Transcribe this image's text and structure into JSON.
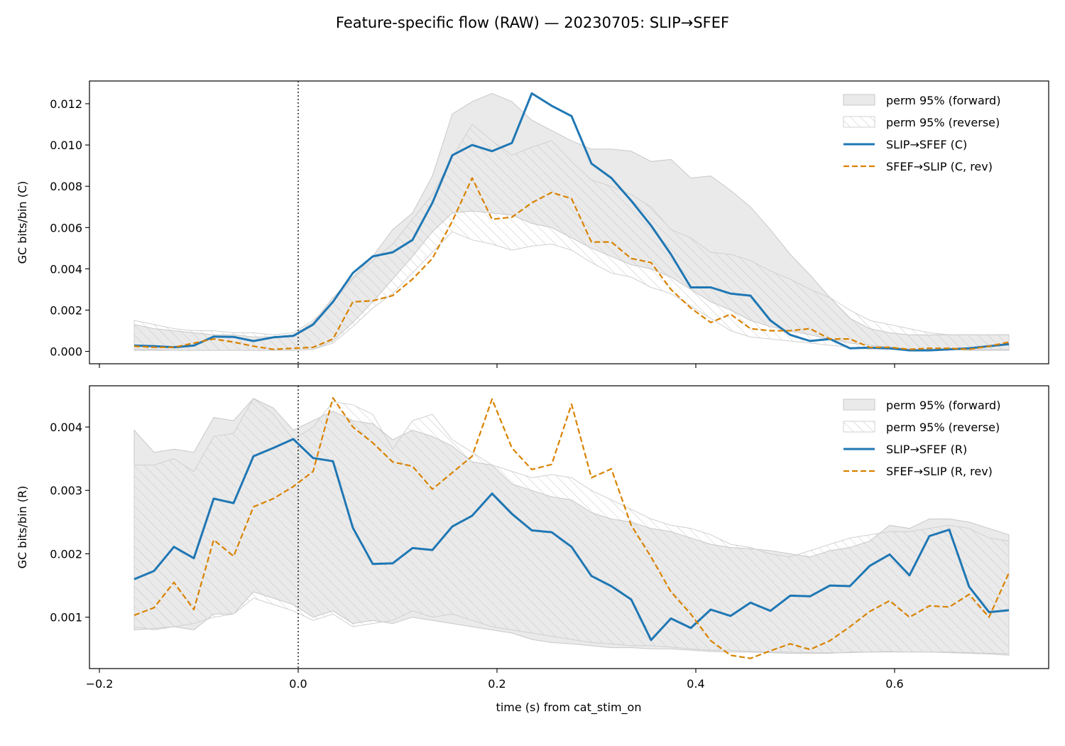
{
  "figure_title": "Feature-specific flow (RAW) — 20230705: SLIP→SFEF",
  "xlabel": "time (s) from cat_stim_on",
  "colors": {
    "forward": "#1f77b4",
    "reverse": "#d98200",
    "band": "#d9d9d9",
    "hatch": "#bdbdbd",
    "vline": "#000000"
  },
  "chart_data": [
    {
      "type": "line",
      "ylabel": "GC bits/bin (C)",
      "xlim": [
        -0.21,
        0.755
      ],
      "ylim": [
        -0.0006,
        0.0131
      ],
      "xticks": [
        -0.2,
        0.0,
        0.2,
        0.4,
        0.6
      ],
      "xticklabels": [
        "−0.2",
        "0.0",
        "0.2",
        "0.4",
        "0.6"
      ],
      "show_xticklabels": false,
      "yticks": [
        0.0,
        0.002,
        0.004,
        0.006,
        0.008,
        0.01,
        0.012
      ],
      "yticklabels": [
        "0.000",
        "0.002",
        "0.004",
        "0.006",
        "0.008",
        "0.010",
        "0.012"
      ],
      "vline_x": 0.0,
      "legend_position": "top-right",
      "x": [
        -0.165,
        -0.145,
        -0.125,
        -0.105,
        -0.085,
        -0.065,
        -0.045,
        -0.025,
        -0.005,
        0.015,
        0.035,
        0.055,
        0.075,
        0.095,
        0.115,
        0.135,
        0.155,
        0.175,
        0.195,
        0.215,
        0.235,
        0.255,
        0.275,
        0.295,
        0.315,
        0.335,
        0.355,
        0.375,
        0.395,
        0.415,
        0.435,
        0.455,
        0.475,
        0.495,
        0.515,
        0.535,
        0.555,
        0.575,
        0.595,
        0.615,
        0.635,
        0.655,
        0.675,
        0.695,
        0.715
      ],
      "band_forward": {
        "name": "perm 95% (forward)",
        "lower": [
          5e-05,
          5e-05,
          5e-05,
          5e-05,
          5e-05,
          5e-05,
          5e-05,
          5e-05,
          5e-05,
          0.0001,
          0.0005,
          0.0014,
          0.0024,
          0.0035,
          0.0046,
          0.0058,
          0.0067,
          0.0068,
          0.0067,
          0.0066,
          0.0062,
          0.006,
          0.0055,
          0.005,
          0.0046,
          0.0042,
          0.004,
          0.0036,
          0.003,
          0.0024,
          0.002,
          0.0015,
          0.0012,
          0.001,
          0.0008,
          0.0006,
          0.0004,
          0.0003,
          0.0002,
          0.0001,
          0.0001,
          0.0001,
          5e-05,
          5e-05,
          5e-05
        ],
        "upper": [
          0.0013,
          0.0011,
          0.001,
          0.0009,
          0.0008,
          0.0008,
          0.0007,
          0.0007,
          0.0008,
          0.0014,
          0.0026,
          0.0036,
          0.0046,
          0.0059,
          0.0067,
          0.0085,
          0.0115,
          0.0121,
          0.0125,
          0.0121,
          0.0112,
          0.0107,
          0.0102,
          0.0098,
          0.0098,
          0.0097,
          0.0092,
          0.0093,
          0.0084,
          0.0085,
          0.0078,
          0.007,
          0.0059,
          0.0047,
          0.0037,
          0.0026,
          0.0016,
          0.0011,
          0.0009,
          0.0008,
          0.0008,
          0.0008,
          0.0008,
          0.0008,
          0.0008
        ]
      },
      "band_reverse": {
        "name": "perm 95% (reverse)",
        "lower": [
          0.0001,
          0.0001,
          5e-05,
          5e-05,
          5e-05,
          5e-05,
          5e-05,
          5e-05,
          5e-05,
          0.0001,
          0.0004,
          0.0012,
          0.0021,
          0.0028,
          0.0038,
          0.0048,
          0.0058,
          0.0054,
          0.0052,
          0.0049,
          0.0051,
          0.0052,
          0.0049,
          0.0043,
          0.0038,
          0.0036,
          0.0031,
          0.0028,
          0.0022,
          0.0016,
          0.001,
          0.0007,
          0.0006,
          0.0005,
          0.0004,
          0.0003,
          0.0002,
          0.0001,
          0.0001,
          0.0001,
          0.0001,
          0.0001,
          0.0001,
          0.0001,
          0.0001
        ],
        "upper": [
          0.0015,
          0.0013,
          0.0011,
          0.001,
          0.001,
          0.0009,
          0.0009,
          0.0008,
          0.0009,
          0.0015,
          0.0024,
          0.0035,
          0.0044,
          0.0052,
          0.0064,
          0.0076,
          0.0094,
          0.011,
          0.0102,
          0.0095,
          0.0099,
          0.0102,
          0.0092,
          0.0083,
          0.008,
          0.0076,
          0.007,
          0.0059,
          0.0055,
          0.0048,
          0.0047,
          0.0044,
          0.0039,
          0.0035,
          0.003,
          0.0026,
          0.002,
          0.0015,
          0.0013,
          0.0011,
          0.0009,
          0.0008,
          0.0008,
          0.0008,
          0.0008
        ]
      },
      "series": [
        {
          "name": "SLIP→SFEF (C)",
          "style": "solid",
          "values": [
            0.00028,
            0.00025,
            0.0002,
            0.00028,
            0.00072,
            0.0007,
            0.0005,
            0.00068,
            0.00075,
            0.0013,
            0.0024,
            0.0038,
            0.0046,
            0.0048,
            0.0054,
            0.0072,
            0.0095,
            0.01,
            0.0097,
            0.0101,
            0.0125,
            0.0119,
            0.0114,
            0.0091,
            0.0084,
            0.0073,
            0.0061,
            0.0047,
            0.0031,
            0.0031,
            0.0028,
            0.0027,
            0.0015,
            0.0008,
            0.0005,
            0.0006,
            0.00015,
            0.00018,
            0.00015,
            5e-05,
            5e-05,
            0.0001,
            0.00015,
            0.00025,
            0.00035
          ]
        },
        {
          "name": "SFEF→SLIP (C, rev)",
          "style": "dashed",
          "values": [
            0.00025,
            0.0002,
            0.0002,
            0.0004,
            0.0006,
            0.00045,
            0.00025,
            0.0001,
            0.00015,
            0.0002,
            0.0006,
            0.0024,
            0.00245,
            0.0027,
            0.0035,
            0.0045,
            0.0063,
            0.0084,
            0.0064,
            0.0065,
            0.0072,
            0.0077,
            0.0074,
            0.0053,
            0.0053,
            0.0045,
            0.0043,
            0.003,
            0.0021,
            0.0014,
            0.0018,
            0.0011,
            0.001,
            0.001,
            0.0011,
            0.0006,
            0.0006,
            0.0002,
            0.0002,
            0.0001,
            0.00015,
            0.00015,
            0.0001,
            0.00025,
            0.00045
          ]
        }
      ]
    },
    {
      "type": "line",
      "ylabel": "GC bits/bin (R)",
      "xlim": [
        -0.21,
        0.755
      ],
      "ylim": [
        0.00019,
        0.00465
      ],
      "xticks": [
        -0.2,
        0.0,
        0.2,
        0.4,
        0.6
      ],
      "xticklabels": [
        "−0.2",
        "0.0",
        "0.2",
        "0.4",
        "0.6"
      ],
      "show_xticklabels": true,
      "yticks": [
        0.001,
        0.002,
        0.003,
        0.004
      ],
      "yticklabels": [
        "0.001",
        "0.002",
        "0.003",
        "0.004"
      ],
      "vline_x": 0.0,
      "legend_position": "top-right",
      "x": [
        -0.165,
        -0.145,
        -0.125,
        -0.105,
        -0.085,
        -0.065,
        -0.045,
        -0.025,
        -0.005,
        0.015,
        0.035,
        0.055,
        0.075,
        0.095,
        0.115,
        0.135,
        0.155,
        0.175,
        0.195,
        0.215,
        0.235,
        0.255,
        0.275,
        0.295,
        0.315,
        0.335,
        0.355,
        0.375,
        0.395,
        0.415,
        0.435,
        0.455,
        0.475,
        0.495,
        0.515,
        0.535,
        0.555,
        0.575,
        0.595,
        0.615,
        0.635,
        0.655,
        0.675,
        0.695,
        0.715
      ],
      "band_forward": {
        "name": "perm 95% (forward)",
        "lower": [
          0.0008,
          0.00082,
          0.00085,
          0.0008,
          0.00105,
          0.00105,
          0.0014,
          0.0013,
          0.0012,
          0.001,
          0.0011,
          0.0009,
          0.00095,
          0.0009,
          0.001,
          0.00095,
          0.0009,
          0.00085,
          0.0008,
          0.00075,
          0.00065,
          0.0006,
          0.00058,
          0.00055,
          0.00052,
          0.00052,
          0.0005,
          0.0005,
          0.00048,
          0.00046,
          0.00045,
          0.00045,
          0.00044,
          0.00043,
          0.00043,
          0.00043,
          0.00045,
          0.00045,
          0.00046,
          0.00045,
          0.00045,
          0.00045,
          0.00044,
          0.00043,
          0.00042
        ],
        "upper": [
          0.00395,
          0.0036,
          0.00365,
          0.0036,
          0.00415,
          0.0041,
          0.00445,
          0.0043,
          0.00395,
          0.0041,
          0.00425,
          0.0041,
          0.00405,
          0.0038,
          0.00395,
          0.00385,
          0.0037,
          0.00345,
          0.0034,
          0.0031,
          0.003,
          0.0029,
          0.00285,
          0.00265,
          0.00255,
          0.0025,
          0.0024,
          0.00235,
          0.00225,
          0.00215,
          0.0021,
          0.00208,
          0.00205,
          0.002,
          0.00195,
          0.00205,
          0.0021,
          0.0022,
          0.00245,
          0.0024,
          0.00255,
          0.00255,
          0.0025,
          0.0024,
          0.0023
        ]
      },
      "band_reverse": {
        "name": "perm 95% (reverse)",
        "lower": [
          0.00085,
          0.0008,
          0.00085,
          0.0009,
          0.001,
          0.00105,
          0.0013,
          0.0012,
          0.0011,
          0.00095,
          0.00105,
          0.00085,
          0.0009,
          0.00095,
          0.0011,
          0.001,
          0.00105,
          0.00095,
          0.00085,
          0.0008,
          0.00075,
          0.0007,
          0.00065,
          0.0006,
          0.00058,
          0.00055,
          0.00055,
          0.00053,
          0.0005,
          0.00048,
          0.00048,
          0.00046,
          0.00045,
          0.00045,
          0.00044,
          0.00044,
          0.00044,
          0.00045,
          0.00045,
          0.00045,
          0.00045,
          0.00044,
          0.00043,
          0.00042,
          0.0004
        ],
        "upper": [
          0.0034,
          0.0034,
          0.0035,
          0.0033,
          0.00385,
          0.0039,
          0.00445,
          0.0042,
          0.0038,
          0.004,
          0.0044,
          0.00435,
          0.0042,
          0.00365,
          0.0041,
          0.0042,
          0.0038,
          0.0036,
          0.0034,
          0.0033,
          0.0032,
          0.00325,
          0.0032,
          0.003,
          0.00285,
          0.0027,
          0.00255,
          0.00245,
          0.0024,
          0.0023,
          0.00215,
          0.0021,
          0.002,
          0.00195,
          0.00205,
          0.00215,
          0.00225,
          0.0023,
          0.00235,
          0.00235,
          0.0024,
          0.00245,
          0.0024,
          0.00225,
          0.0022
        ]
      },
      "series": [
        {
          "name": "SLIP→SFEF (R)",
          "style": "solid",
          "values": [
            0.0016,
            0.00173,
            0.00211,
            0.00193,
            0.00287,
            0.0028,
            0.00354,
            0.00367,
            0.00381,
            0.00351,
            0.00346,
            0.00241,
            0.00184,
            0.00185,
            0.00209,
            0.00206,
            0.00243,
            0.0026,
            0.00295,
            0.00263,
            0.00237,
            0.00234,
            0.00211,
            0.00165,
            0.00149,
            0.00128,
            0.00064,
            0.00098,
            0.00083,
            0.00112,
            0.00102,
            0.00123,
            0.0011,
            0.00134,
            0.00133,
            0.0015,
            0.00149,
            0.00181,
            0.00199,
            0.00166,
            0.00228,
            0.00238,
            0.00148,
            0.00108,
            0.00111
          ]
        },
        {
          "name": "SFEF→SLIP (R, rev)",
          "style": "dashed",
          "values": [
            0.00103,
            0.00115,
            0.00155,
            0.00112,
            0.00222,
            0.00196,
            0.00274,
            0.00287,
            0.00306,
            0.0033,
            0.00446,
            0.004,
            0.00375,
            0.00345,
            0.00338,
            0.00302,
            0.00328,
            0.00354,
            0.00444,
            0.00367,
            0.00333,
            0.00341,
            0.00436,
            0.0032,
            0.00334,
            0.00245,
            0.00195,
            0.0014,
            0.00105,
            0.00063,
            0.0004,
            0.00035,
            0.00047,
            0.00058,
            0.00049,
            0.00063,
            0.00085,
            0.00109,
            0.00126,
            0.001,
            0.00118,
            0.00116,
            0.00136,
            0.001,
            0.0017
          ]
        }
      ]
    }
  ]
}
